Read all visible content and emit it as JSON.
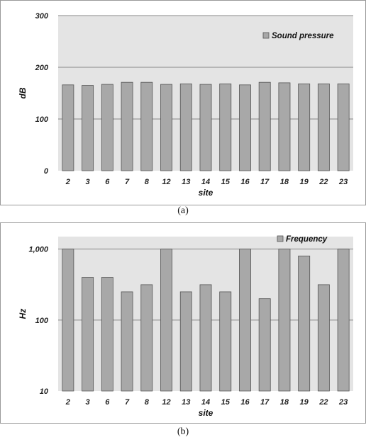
{
  "captions": {
    "a": "(a)",
    "b": "(b)"
  },
  "colors": {
    "plot_background": "#e4e4e4",
    "bar_fill": "#a8a8a8",
    "bar_stroke": "#555555",
    "gridline": "#888888",
    "frame": "#999999"
  },
  "chart_data": [
    {
      "type": "bar",
      "title": "",
      "xlabel": "site",
      "ylabel": "dB",
      "ylim": [
        0,
        300
      ],
      "yticks": [
        0,
        100,
        200,
        300
      ],
      "ytick_labels": [
        "0",
        "100",
        "200",
        "300"
      ],
      "grid": "horizontal",
      "legend_position": "top-right",
      "categories": [
        "2",
        "3",
        "6",
        "7",
        "8",
        "12",
        "13",
        "14",
        "15",
        "16",
        "17",
        "18",
        "19",
        "22",
        "23"
      ],
      "series": [
        {
          "name": "Sound pressure",
          "values": [
            166,
            165,
            167,
            171,
            171,
            167,
            168,
            167,
            168,
            166,
            171,
            170,
            168,
            168,
            168
          ]
        }
      ]
    },
    {
      "type": "bar",
      "title": "",
      "xlabel": "site",
      "ylabel": "Hz",
      "yscale": "log",
      "ylim": [
        10,
        1500
      ],
      "yticks": [
        10,
        100,
        1000
      ],
      "ytick_labels": [
        "10",
        "100",
        "1,000"
      ],
      "grid": "horizontal",
      "legend_position": "top-right",
      "categories": [
        "2",
        "3",
        "6",
        "7",
        "8",
        "12",
        "13",
        "14",
        "15",
        "16",
        "17",
        "18",
        "19",
        "22",
        "23"
      ],
      "series": [
        {
          "name": "Frequency",
          "values": [
            1000,
            400,
            400,
            250,
            315,
            1000,
            250,
            315,
            250,
            1000,
            200,
            1000,
            800,
            315,
            1000
          ]
        }
      ]
    }
  ]
}
